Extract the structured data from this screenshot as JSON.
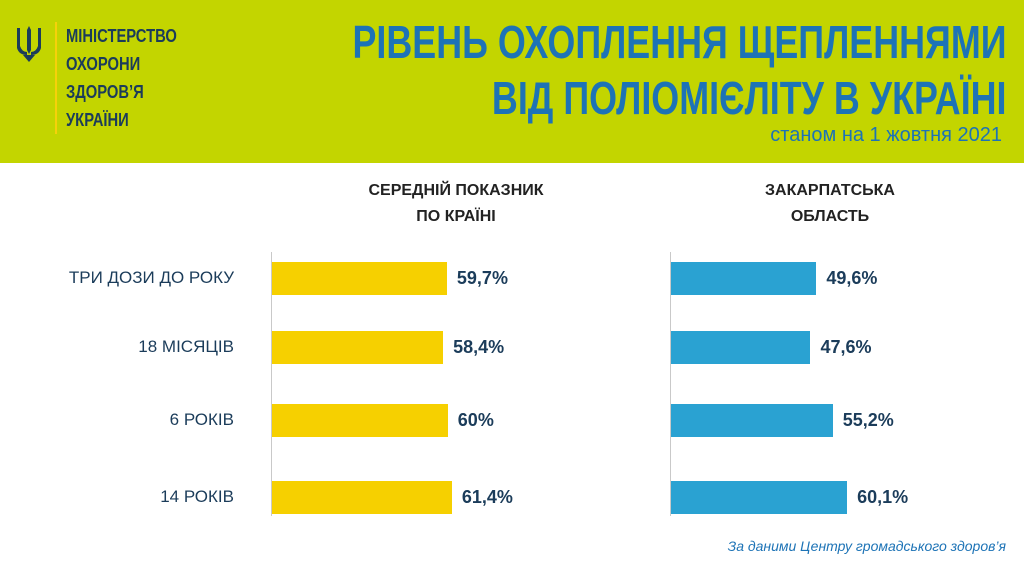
{
  "header": {
    "ministry_lines": [
      "МІНІСТЕРСТВО",
      "ОХОРОНИ",
      "ЗДОРОВ’Я",
      "УКРАЇНИ"
    ],
    "title_lines": [
      "РІВЕНЬ ОХОПЛЕННЯ ЩЕПЛЕННЯМИ",
      "ВІД ПОЛІОМІЄЛІТУ В УКРАЇНІ"
    ],
    "subtitle": "станом на 1 жовтня 2021",
    "background_color": "#c3d500",
    "title_color": "#1d73b6"
  },
  "footer": {
    "source": "За даними Центру громадського здоров’я"
  },
  "chart_data": {
    "type": "bar",
    "orientation": "horizontal",
    "categories": [
      "ТРИ ДОЗИ ДО РОКУ",
      "18 МІСЯЦІВ",
      "6 РОКІВ",
      "14 РОКІВ"
    ],
    "series": [
      {
        "name": "СЕРЕДНІЙ ПОКАЗНИК ПО КРАЇНІ",
        "name_lines": [
          "СЕРЕДНІЙ ПОКАЗНИК",
          "ПО КРАЇНІ"
        ],
        "values": [
          59.7,
          58.4,
          60,
          61.4
        ],
        "value_labels": [
          "59,7%",
          "58,4%",
          "60%",
          "61,4%"
        ],
        "color": "#f6d000"
      },
      {
        "name": "ЗАКАРПАТСЬКА ОБЛАСТЬ",
        "name_lines": [
          "ЗАКАРПАТСЬКА",
          "ОБЛАСТЬ"
        ],
        "values": [
          49.6,
          47.6,
          55.2,
          60.1
        ],
        "value_labels": [
          "49,6%",
          "47,6%",
          "55,2%",
          "60,1%"
        ],
        "color": "#2aa2d2"
      }
    ],
    "xlim": [
      0,
      100
    ],
    "grid": false,
    "legend": "column headers"
  }
}
